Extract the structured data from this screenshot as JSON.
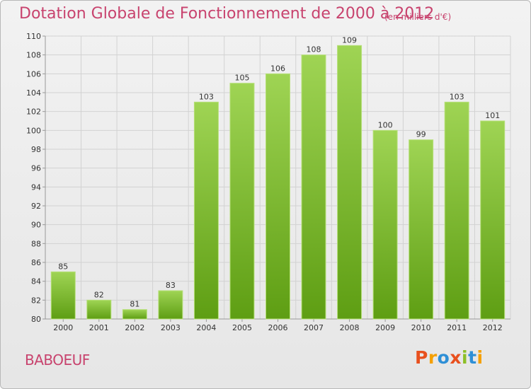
{
  "header": {
    "title": "Dotation Globale de Fonctionnement de 2000 à 2012",
    "subtitle": "(en milliers d'€)"
  },
  "footer": {
    "commune": "BABOEUF",
    "logo_text": "Proxiti"
  },
  "colors": {
    "title": "#c8436e",
    "bar_top": "#9fd454",
    "bar_bottom": "#5e9e13",
    "logo": [
      "#e8501e",
      "#f5a000",
      "#2e8fd6",
      "#e8501e",
      "#8cbf26",
      "#2e8fd6",
      "#f5a000"
    ]
  },
  "chart_data": {
    "type": "bar",
    "title": "Dotation Globale de Fonctionnement de 2000 à 2012",
    "subtitle": "(en milliers d'€)",
    "categories": [
      "2000",
      "2001",
      "2002",
      "2003",
      "2004",
      "2005",
      "2006",
      "2007",
      "2008",
      "2009",
      "2010",
      "2011",
      "2012"
    ],
    "values": [
      85,
      82,
      81,
      83,
      103,
      105,
      106,
      108,
      109,
      100,
      99,
      103,
      101
    ],
    "ylim": [
      80,
      110
    ],
    "yticks": [
      80,
      82,
      84,
      86,
      88,
      90,
      92,
      94,
      96,
      98,
      100,
      102,
      104,
      106,
      108,
      110
    ],
    "grid": true
  }
}
